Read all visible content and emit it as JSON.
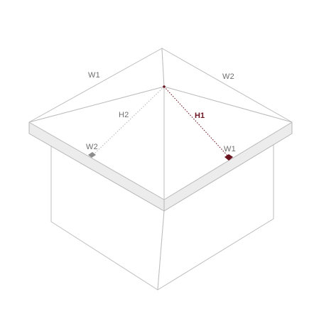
{
  "labels": {
    "w1_top_left": "W1",
    "w2_top_right": "W2",
    "h2": "H2",
    "h1": "H1",
    "w2_front_left": "W2",
    "w1_front_right": "W1"
  },
  "colors": {
    "line": "#bdbdbd",
    "accent": "#6b1420",
    "marker_gray": "#8c8c8c",
    "eave_fill": "#ececec"
  }
}
